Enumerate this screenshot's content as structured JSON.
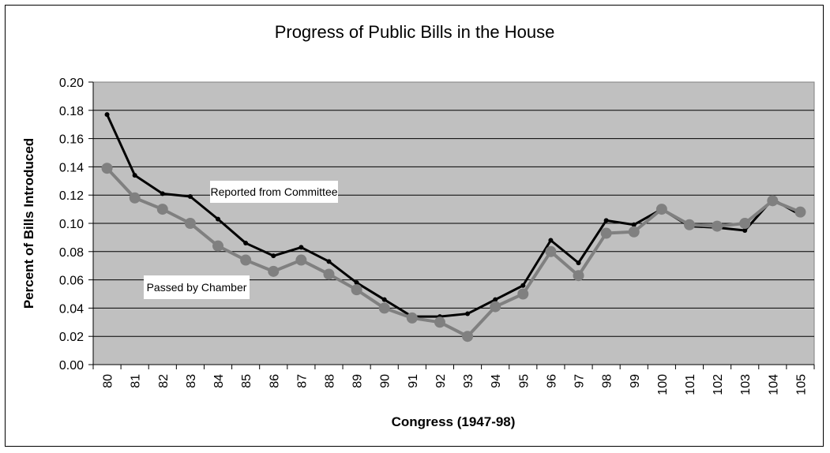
{
  "chart_data": {
    "type": "line",
    "title": "Progress of Public Bills in the House",
    "xlabel": "Congress (1947-98)",
    "ylabel": "Percent of Bills Introduced",
    "categories": [
      "80",
      "81",
      "82",
      "83",
      "84",
      "85",
      "86",
      "87",
      "88",
      "89",
      "90",
      "91",
      "92",
      "93",
      "94",
      "95",
      "96",
      "97",
      "98",
      "99",
      "100",
      "101",
      "102",
      "103",
      "104",
      "105"
    ],
    "ylim": [
      0,
      0.2
    ],
    "yticks": [
      "0.00",
      "0.02",
      "0.04",
      "0.06",
      "0.08",
      "0.10",
      "0.12",
      "0.14",
      "0.16",
      "0.18",
      "0.20"
    ],
    "grid": true,
    "plot_background": "#c0c0c0",
    "series": [
      {
        "name": "Reported from Committee",
        "color": "#000000",
        "values": [
          0.177,
          0.134,
          0.121,
          0.119,
          0.103,
          0.086,
          0.077,
          0.083,
          0.073,
          0.058,
          0.046,
          0.034,
          0.034,
          0.036,
          0.046,
          0.056,
          0.088,
          0.072,
          0.102,
          0.099,
          0.11,
          0.098,
          0.097,
          0.095,
          0.117,
          0.106
        ]
      },
      {
        "name": "Passed by Chamber",
        "color": "#808080",
        "values": [
          0.139,
          0.118,
          0.11,
          0.1,
          0.084,
          0.074,
          0.066,
          0.074,
          0.064,
          0.053,
          0.04,
          0.033,
          0.03,
          0.02,
          0.041,
          0.05,
          0.08,
          0.063,
          0.093,
          0.094,
          0.11,
          0.099,
          0.098,
          0.1,
          0.116,
          0.108
        ]
      }
    ]
  }
}
